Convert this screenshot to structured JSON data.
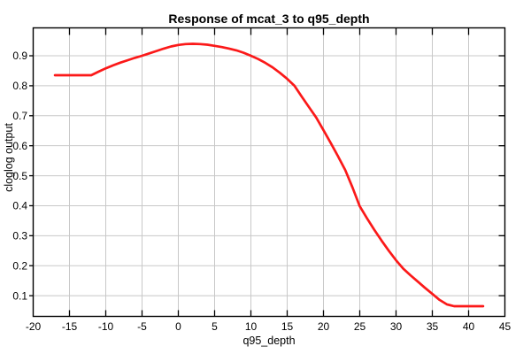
{
  "chart_data": {
    "type": "line",
    "title": "Response of mcat_3 to q95_depth",
    "xlabel": "q95_depth",
    "ylabel": "cloglog output",
    "grid": true,
    "legend": "none",
    "axes": {
      "x": {
        "min": -20,
        "max": 45,
        "ticks": [
          -20,
          -15,
          -10,
          -5,
          0,
          5,
          10,
          15,
          20,
          25,
          30,
          35,
          40,
          45
        ]
      },
      "y": {
        "min": 0.031,
        "max": 0.993,
        "ticks": [
          0.1,
          0.2,
          0.3,
          0.4,
          0.5,
          0.6,
          0.7,
          0.8,
          0.9
        ]
      }
    },
    "series": [
      {
        "name": "response of mcat_3",
        "x": [
          -17,
          -16,
          -15,
          -14,
          -13,
          -12,
          -11,
          -10,
          -9,
          -8,
          -7,
          -6,
          -5,
          -4,
          -3,
          -2,
          -1,
          0,
          1,
          2,
          3,
          4,
          5,
          6,
          7,
          8,
          9,
          10,
          11,
          12,
          13,
          14,
          15,
          16,
          17,
          18,
          19,
          20,
          21,
          22,
          23,
          24,
          25,
          26,
          27,
          28,
          29,
          30,
          31,
          32,
          33,
          34,
          35,
          36,
          37,
          38,
          39,
          40,
          41,
          42
        ],
        "y": [
          0.835,
          0.835,
          0.835,
          0.835,
          0.835,
          0.835,
          0.847,
          0.858,
          0.868,
          0.877,
          0.885,
          0.893,
          0.9,
          0.908,
          0.916,
          0.924,
          0.931,
          0.936,
          0.939,
          0.94,
          0.939,
          0.937,
          0.933,
          0.929,
          0.924,
          0.918,
          0.91,
          0.9,
          0.889,
          0.876,
          0.861,
          0.843,
          0.823,
          0.8,
          0.764,
          0.729,
          0.694,
          0.652,
          0.609,
          0.565,
          0.519,
          0.461,
          0.398,
          0.358,
          0.32,
          0.284,
          0.25,
          0.218,
          0.19,
          0.168,
          0.147,
          0.126,
          0.106,
          0.086,
          0.071,
          0.065,
          0.065,
          0.065,
          0.065,
          0.065
        ]
      }
    ],
    "colors": {
      "line": "#fb1919",
      "grid": "#c8c8c8",
      "frame": "#000000",
      "background": "#ffffff",
      "text": "#000000"
    }
  }
}
